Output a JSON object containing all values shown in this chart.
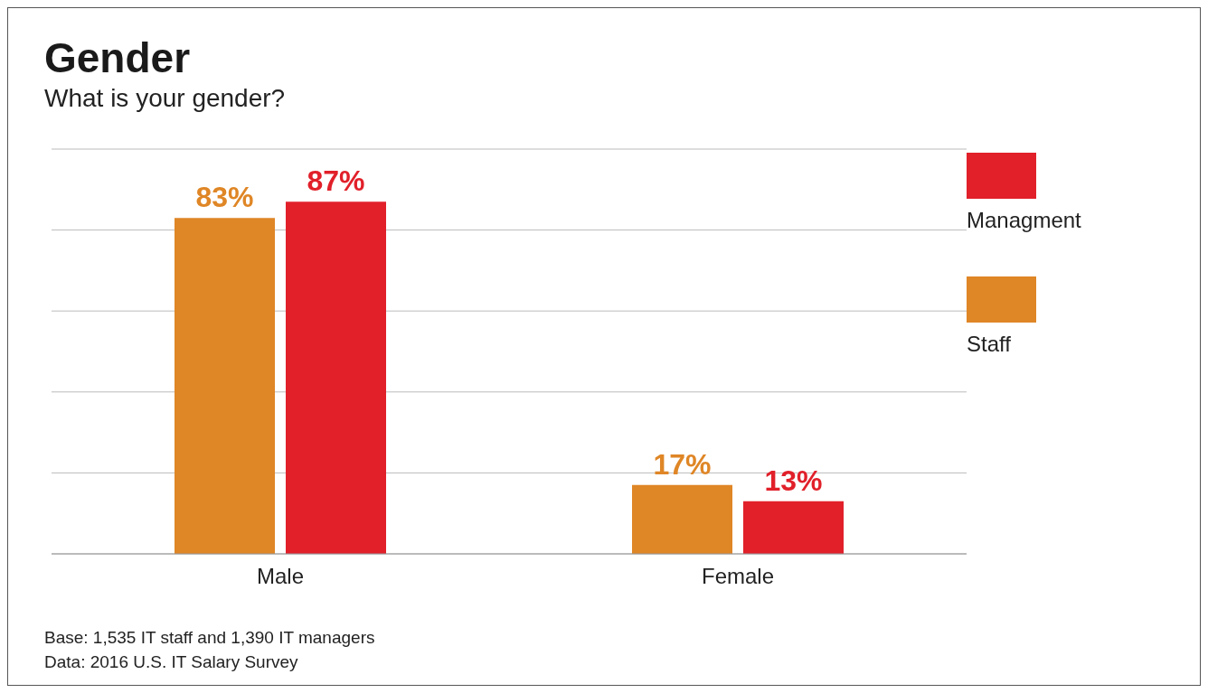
{
  "chart_data": {
    "type": "bar",
    "title": "Gender",
    "subtitle": "What is your gender?",
    "categories": [
      "Male",
      "Female"
    ],
    "series": [
      {
        "name": "Staff",
        "color": "#df8626",
        "values": [
          83,
          17
        ],
        "value_labels": [
          "83%",
          "17%"
        ]
      },
      {
        "name": "Managment",
        "color": "#e1202a",
        "values": [
          87,
          13
        ],
        "value_labels": [
          "87%",
          "13%"
        ]
      }
    ],
    "ylim": [
      0,
      100
    ],
    "yticks": [
      {
        "value": 0,
        "label": null
      },
      {
        "value": 20,
        "label": null
      },
      {
        "value": 40,
        "label": null
      },
      {
        "value": 60,
        "label": null
      },
      {
        "value": 80,
        "label": null
      },
      {
        "value": 100,
        "label": null
      }
    ],
    "tick_labels": "x",
    "grid": "y",
    "legend": "right",
    "annotations": [
      "Base: 1,535 IT staff and 1,390 IT managers",
      "Data: 2016 U.S. IT Salary Survey"
    ]
  }
}
